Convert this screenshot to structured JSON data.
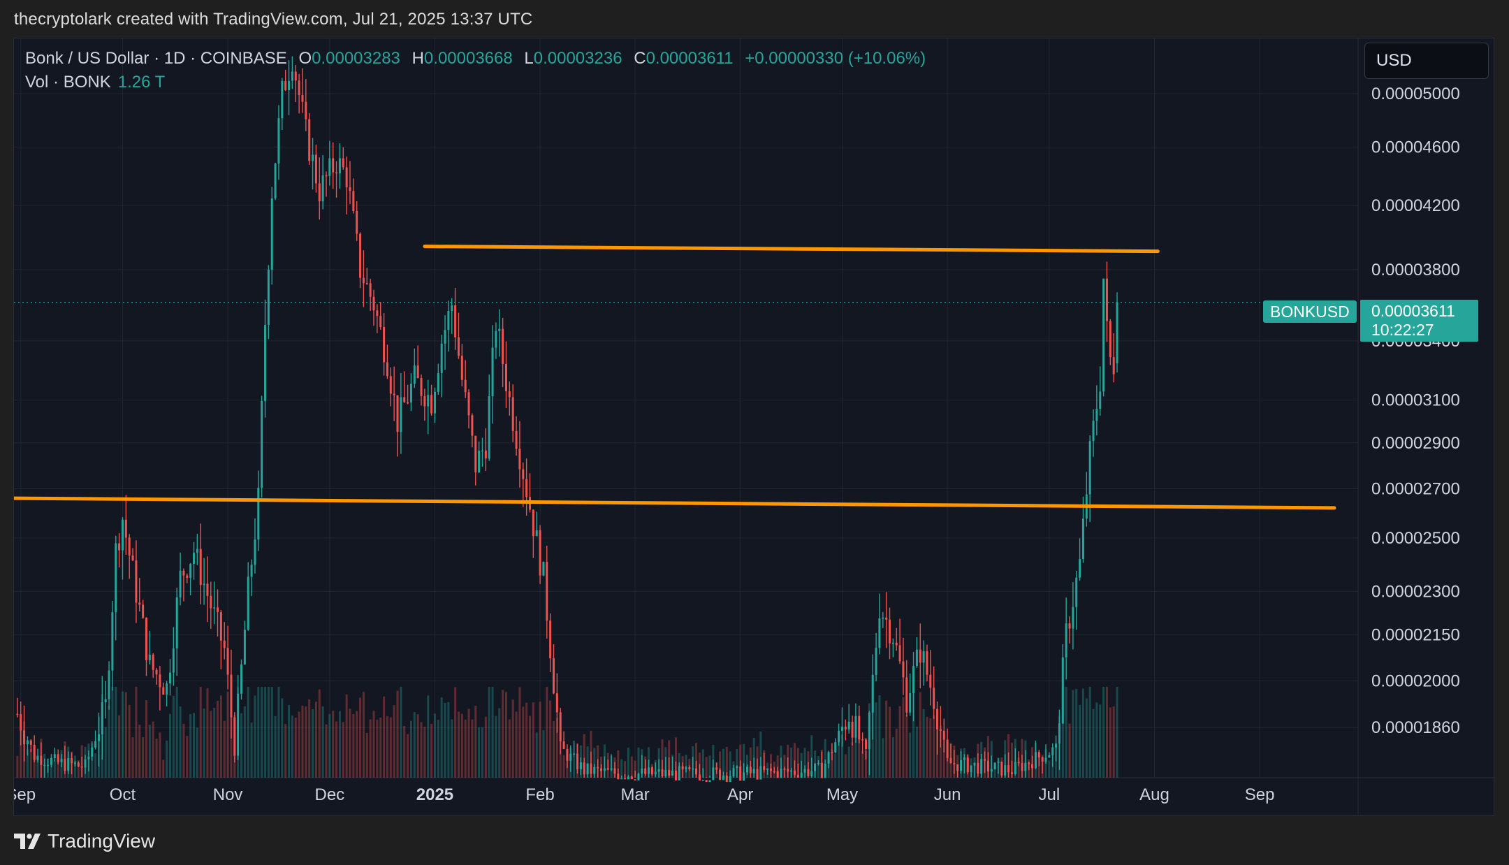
{
  "caption": "thecryptolark created with TradingView.com, Jul 21, 2025 13:37 UTC",
  "legend": {
    "symbol": "Bonk / US Dollar · 1D · COINBASE",
    "o_label": "O",
    "o_value": "0.00003283",
    "h_label": "H",
    "h_value": "0.00003668",
    "l_label": "L",
    "l_value": "0.00003236",
    "c_label": "C",
    "c_value": "0.00003611",
    "change": "+0.00000330 (+10.06%)",
    "vol_label": "Vol · BONK",
    "vol_value": "1.26 T"
  },
  "currency_button": "USD",
  "symbol_badge": "BONKUSD",
  "price_badge": {
    "price": "0.00003611",
    "countdown": "10:22:27"
  },
  "footer_brand": "TradingView",
  "colors": {
    "up": "#26a69a",
    "down": "#ef5350",
    "trendline": "#ff9800",
    "background": "#131722",
    "grid": "#232632"
  },
  "chart_data": {
    "type": "candlestick",
    "title": "Bonk / US Dollar · 1D · COINBASE",
    "y_scale": "log",
    "ylim": [
      1.72e-05,
      5.45e-05
    ],
    "xlim": [
      "2024-08-30",
      "2025-09-30"
    ],
    "y_ticks": [
      "0.00005000",
      "0.00004600",
      "0.00004200",
      "0.00003800",
      "0.00003400",
      "0.00003100",
      "0.00002900",
      "0.00002700",
      "0.00002500",
      "0.00002300",
      "0.00002150",
      "0.00002000",
      "0.00001860"
    ],
    "x_ticks": [
      {
        "label": "Sep",
        "date": "2024-09-01"
      },
      {
        "label": "Oct",
        "date": "2024-10-01"
      },
      {
        "label": "Nov",
        "date": "2024-11-01"
      },
      {
        "label": "Dec",
        "date": "2024-12-01"
      },
      {
        "label": "2025",
        "date": "2025-01-01",
        "bold": true
      },
      {
        "label": "Feb",
        "date": "2025-02-01"
      },
      {
        "label": "Mar",
        "date": "2025-03-01"
      },
      {
        "label": "Apr",
        "date": "2025-04-01"
      },
      {
        "label": "May",
        "date": "2025-05-01"
      },
      {
        "label": "Jun",
        "date": "2025-06-01"
      },
      {
        "label": "Jul",
        "date": "2025-07-01"
      },
      {
        "label": "Aug",
        "date": "2025-08-01"
      },
      {
        "label": "Sep",
        "date": "2025-09-01"
      }
    ],
    "close_anchors": [
      [
        "2024-08-31",
        1.9e-05
      ],
      [
        "2024-09-05",
        1.78e-05
      ],
      [
        "2024-09-12",
        1.76e-05
      ],
      [
        "2024-09-20",
        1.75e-05
      ],
      [
        "2024-09-26",
        1.92e-05
      ],
      [
        "2024-09-29",
        2.45e-05
      ],
      [
        "2024-10-01",
        2.58e-05
      ],
      [
        "2024-10-05",
        2.3e-05
      ],
      [
        "2024-10-09",
        2.05e-05
      ],
      [
        "2024-10-14",
        1.98e-05
      ],
      [
        "2024-10-18",
        2.35e-05
      ],
      [
        "2024-10-22",
        2.45e-05
      ],
      [
        "2024-10-27",
        2.25e-05
      ],
      [
        "2024-10-31",
        2.1e-05
      ],
      [
        "2024-11-03",
        1.8e-05
      ],
      [
        "2024-11-07",
        2.3e-05
      ],
      [
        "2024-11-10",
        2.65e-05
      ],
      [
        "2024-11-12",
        3.5e-05
      ],
      [
        "2024-11-14",
        4.3e-05
      ],
      [
        "2024-11-17",
        5e-05
      ],
      [
        "2024-11-20",
        5.3e-05
      ],
      [
        "2024-11-24",
        4.7e-05
      ],
      [
        "2024-11-28",
        4.3e-05
      ],
      [
        "2024-12-03",
        4.5e-05
      ],
      [
        "2024-12-06",
        4.4e-05
      ],
      [
        "2024-12-10",
        3.8e-05
      ],
      [
        "2024-12-14",
        3.6e-05
      ],
      [
        "2024-12-18",
        3.3e-05
      ],
      [
        "2024-12-21",
        3e-05
      ],
      [
        "2024-12-26",
        3.2e-05
      ],
      [
        "2024-12-31",
        3.1e-05
      ],
      [
        "2025-01-03",
        3.4e-05
      ],
      [
        "2025-01-06",
        3.6e-05
      ],
      [
        "2025-01-09",
        3.2e-05
      ],
      [
        "2025-01-13",
        2.8e-05
      ],
      [
        "2025-01-16",
        2.9e-05
      ],
      [
        "2025-01-19",
        3.5e-05
      ],
      [
        "2025-01-23",
        3.1e-05
      ],
      [
        "2025-01-28",
        2.7e-05
      ],
      [
        "2025-02-02",
        2.35e-05
      ],
      [
        "2025-02-07",
        1.8e-05
      ],
      [
        "2025-02-14",
        1.74e-05
      ],
      [
        "2025-02-25",
        1.73e-05
      ],
      [
        "2025-03-31",
        1.73e-05
      ],
      [
        "2025-04-25",
        1.74e-05
      ],
      [
        "2025-05-03",
        1.9e-05
      ],
      [
        "2025-05-08",
        1.78e-05
      ],
      [
        "2025-05-12",
        2.25e-05
      ],
      [
        "2025-05-16",
        2.15e-05
      ],
      [
        "2025-05-20",
        1.95e-05
      ],
      [
        "2025-05-24",
        2.1e-05
      ],
      [
        "2025-05-28",
        1.95e-05
      ],
      [
        "2025-06-01",
        1.76e-05
      ],
      [
        "2025-06-20",
        1.74e-05
      ],
      [
        "2025-07-03",
        1.8e-05
      ],
      [
        "2025-07-06",
        2.15e-05
      ],
      [
        "2025-07-10",
        2.4e-05
      ],
      [
        "2025-07-13",
        2.85e-05
      ],
      [
        "2025-07-16",
        3.2e-05
      ],
      [
        "2025-07-17",
        3.75e-05
      ],
      [
        "2025-07-18",
        3.45e-05
      ],
      [
        "2025-07-19",
        3.3e-05
      ],
      [
        "2025-07-20",
        3.28e-05
      ],
      [
        "2025-07-21",
        3.611e-05
      ]
    ],
    "last_candle": {
      "date": "2025-07-21",
      "open": 3.283e-05,
      "high": 3.668e-05,
      "low": 3.236e-05,
      "close": 3.611e-05
    },
    "trendlines": [
      {
        "name": "resistance",
        "from": [
          "2024-12-29",
          3.94e-05
        ],
        "to": [
          "2025-08-02",
          3.91e-05
        ]
      },
      {
        "name": "support",
        "from": [
          "2024-08-27",
          2.66e-05
        ],
        "to": [
          "2025-09-23",
          2.62e-05
        ]
      }
    ],
    "last_price_line": 3.611e-05
  }
}
